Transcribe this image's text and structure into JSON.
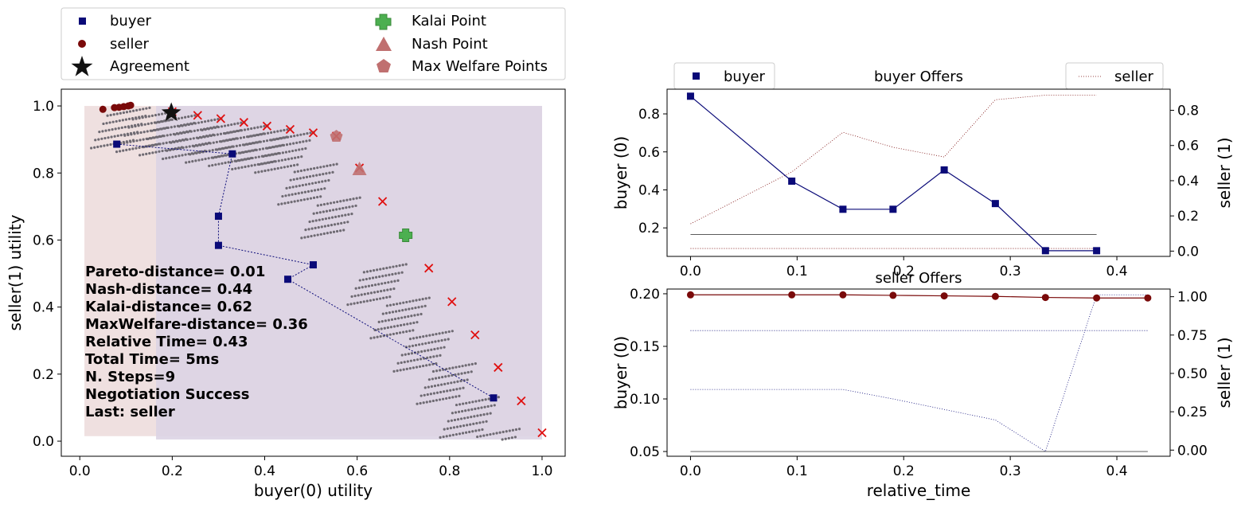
{
  "colors": {
    "buyer": "#0a0a78",
    "seller": "#7a0a0a",
    "pareto": "#e01010",
    "kalai": "#4caf50",
    "nash": "#c07070",
    "welfare": "#c07070",
    "outcome_dot": "#6e6a72",
    "region_buyer": "#efe0e0",
    "region_seller": "#dcd4e4"
  },
  "chart_data": [
    {
      "id": "utility",
      "type": "scatter",
      "xlabel": "buyer(0) utility",
      "ylabel": "seller(1) utility",
      "xlim": [
        -0.04,
        1.05
      ],
      "ylim": [
        -0.045,
        1.05
      ],
      "xticks": [
        0.0,
        0.2,
        0.4,
        0.6,
        0.8,
        1.0
      ],
      "yticks": [
        0.0,
        0.2,
        0.4,
        0.6,
        0.8,
        1.0
      ],
      "xtick_labels": [
        "0.0",
        "0.2",
        "0.4",
        "0.6",
        "0.8",
        "1.0"
      ],
      "ytick_labels": [
        "0.0",
        "0.2",
        "0.4",
        "0.6",
        "0.8",
        "1.0"
      ],
      "legend": {
        "placement": "above",
        "entries": [
          "buyer",
          "seller",
          "Agreement",
          "Kalai Point",
          "Nash Point",
          "Max Welfare Points"
        ]
      },
      "series": [
        {
          "name": "buyer",
          "points": [
            [
              0.08,
              0.886
            ],
            [
              0.33,
              0.857
            ],
            [
              0.3,
              0.671
            ],
            [
              0.3,
              0.584
            ],
            [
              0.505,
              0.526
            ],
            [
              0.45,
              0.483
            ],
            [
              0.895,
              0.129
            ]
          ]
        },
        {
          "name": "seller",
          "points": [
            [
              0.05,
              0.99
            ],
            [
              0.075,
              0.995
            ],
            [
              0.085,
              0.996
            ],
            [
              0.095,
              0.998
            ],
            [
              0.105,
              1.0
            ],
            [
              0.11,
              1.002
            ]
          ]
        }
      ],
      "agreement": [
        0.198,
        0.98
      ],
      "kalai_point": [
        0.705,
        0.614
      ],
      "nash_point": [
        0.605,
        0.81
      ],
      "max_welfare_points": [
        [
          0.555,
          0.91
        ]
      ],
      "pareto_points": [
        [
          0.2,
          0.983
        ],
        [
          0.255,
          0.972
        ],
        [
          0.305,
          0.962
        ],
        [
          0.355,
          0.951
        ],
        [
          0.405,
          0.94
        ],
        [
          0.455,
          0.93
        ],
        [
          0.505,
          0.92
        ],
        [
          0.555,
          0.91
        ],
        [
          0.605,
          0.815
        ],
        [
          0.655,
          0.715
        ],
        [
          0.755,
          0.516
        ],
        [
          0.805,
          0.416
        ],
        [
          0.855,
          0.317
        ],
        [
          0.905,
          0.22
        ],
        [
          0.955,
          0.12
        ],
        [
          1.0,
          0.025
        ]
      ],
      "regions": [
        {
          "x": [
            0.01,
            1.0
          ],
          "y": [
            0.015,
            1.0
          ]
        },
        {
          "x": [
            0.165,
            1.0
          ],
          "y": [
            0.005,
            1.0
          ]
        }
      ],
      "stats_lines": [
        "Pareto-distance= 0.01",
        "Nash-distance= 0.44",
        "Kalai-distance= 0.62",
        "MaxWelfare-distance= 0.36",
        "Relative Time= 0.43",
        "Total Time= 5ms",
        "N. Steps=9",
        "Negotiation Success",
        "Last: seller"
      ]
    },
    {
      "id": "buyer-offers",
      "type": "line",
      "title": "buyer Offers",
      "xlabel": "",
      "ylabel": "buyer (0)",
      "ylabel_right": "seller (1)",
      "xlim": [
        -0.022,
        0.45
      ],
      "ylim": [
        0.05,
        0.93
      ],
      "ylim_right": [
        -0.03,
        0.92
      ],
      "xticks": [
        0.0,
        0.1,
        0.2,
        0.3,
        0.4
      ],
      "xtick_labels": [
        "0.0",
        "0.1",
        "0.2",
        "0.3",
        "0.4"
      ],
      "yticks": [
        0.2,
        0.4,
        0.6,
        0.8
      ],
      "ytick_labels": [
        "0.2",
        "0.4",
        "0.6",
        "0.8"
      ],
      "yticks_right": [
        0.0,
        0.2,
        0.4,
        0.6,
        0.8
      ],
      "ytick_labels_right": [
        "0.0",
        "0.2",
        "0.4",
        "0.6",
        "0.8"
      ],
      "legend_left": "buyer",
      "legend_right": "seller",
      "x": [
        0.0,
        0.095,
        0.143,
        0.19,
        0.238,
        0.286,
        0.333,
        0.381
      ],
      "series": [
        {
          "name": "buyer",
          "axis": "left",
          "values": [
            0.893,
            0.446,
            0.298,
            0.298,
            0.505,
            0.328,
            0.08,
            0.08
          ]
        },
        {
          "name": "seller",
          "axis": "right",
          "values": [
            0.155,
            0.45,
            0.675,
            0.59,
            0.535,
            0.86,
            0.886,
            0.886
          ]
        },
        {
          "name": "",
          "axis": "left",
          "values": [
            0.165,
            0.165,
            0.165,
            0.165,
            0.165,
            0.165,
            0.165,
            0.165
          ]
        },
        {
          "name": "",
          "axis": "right",
          "values": [
            0.015,
            0.015,
            0.015,
            0.015,
            0.015,
            0.015,
            0.015,
            0.015
          ]
        }
      ]
    },
    {
      "id": "seller-offers",
      "type": "line",
      "title": "seller Offers",
      "xlabel": "relative_time",
      "ylabel": "buyer (0)",
      "ylabel_right": "seller (1)",
      "xlim": [
        -0.022,
        0.45
      ],
      "ylim": [
        0.0455,
        0.2045
      ],
      "ylim_right": [
        -0.04,
        1.05
      ],
      "xticks": [
        0.0,
        0.1,
        0.2,
        0.3,
        0.4
      ],
      "xtick_labels": [
        "0.0",
        "0.1",
        "0.2",
        "0.3",
        "0.4"
      ],
      "yticks": [
        0.05,
        0.1,
        0.15,
        0.2
      ],
      "ytick_labels": [
        "0.05",
        "0.10",
        "0.15",
        "0.20"
      ],
      "yticks_right": [
        0.0,
        0.25,
        0.5,
        0.75,
        1.0
      ],
      "ytick_labels_right": [
        "0.00",
        "0.25",
        "0.50",
        "0.75",
        "1.00"
      ],
      "x": [
        0.0,
        0.095,
        0.143,
        0.19,
        0.238,
        0.286,
        0.333,
        0.381,
        0.429
      ],
      "series": [
        {
          "name": "seller",
          "axis": "left",
          "values": [
            0.199,
            0.199,
            0.199,
            0.1985,
            0.198,
            0.1975,
            0.1965,
            0.196,
            0.196
          ]
        },
        {
          "name": "buyer",
          "axis": "left",
          "values": [
            0.109,
            0.109,
            0.109,
            0.1,
            0.09,
            0.08,
            0.05,
            0.199,
            0.199
          ]
        },
        {
          "name": "",
          "axis": "left",
          "values": [
            0.165,
            0.165,
            0.165,
            0.165,
            0.165,
            0.165,
            0.165,
            0.165,
            0.165
          ]
        },
        {
          "name": "",
          "axis": "left",
          "values": [
            0.05,
            0.05,
            0.05,
            0.05,
            0.05,
            0.05,
            0.05,
            0.05,
            0.05
          ]
        }
      ]
    }
  ]
}
